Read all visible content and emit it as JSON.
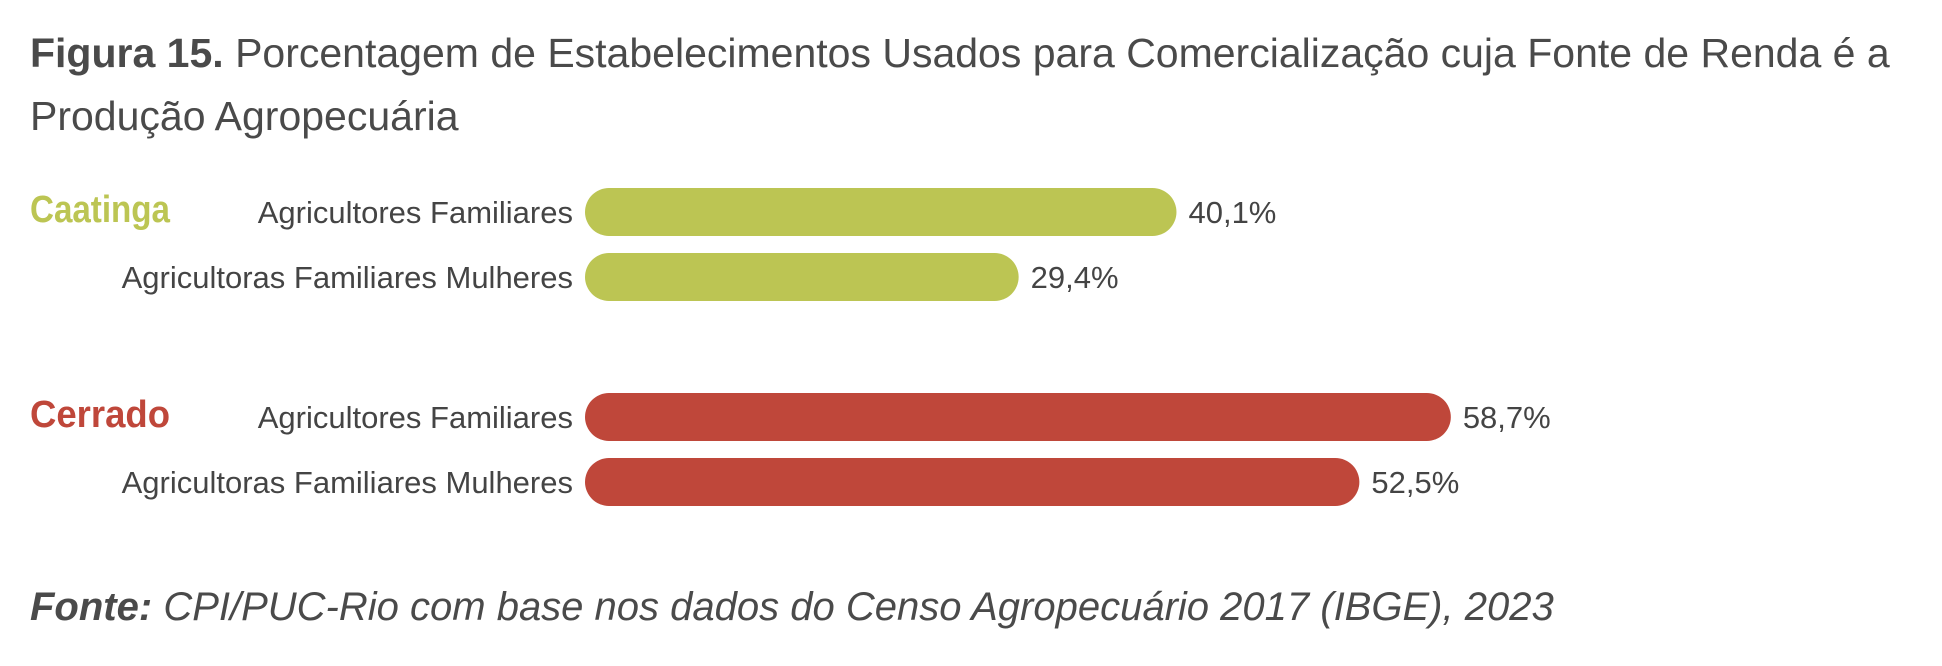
{
  "title": {
    "label": "Figura 15.",
    "text": "Porcentagem de Estabelecimentos Usados para Comercialização cuja Fonte de Renda é a Produção Agropecuária"
  },
  "source": {
    "label": "Fonte:",
    "text": "CPI/PUC-Rio com base nos dados do Censo Agropecuário 2017 (IBGE), 2023"
  },
  "chart_data": {
    "type": "bar",
    "orientation": "horizontal",
    "title": "Porcentagem de Estabelecimentos Usados para Comercialização cuja Fonte de Renda é a Produção Agropecuária",
    "xlim": [
      0,
      100
    ],
    "unit": "%",
    "grid": false,
    "groups": [
      {
        "name": "Caatinga",
        "color": "#bcc553",
        "bars": [
          {
            "category": "Agricultores Familiares",
            "value": 40.1,
            "label": "40,1%"
          },
          {
            "category": "Agricultoras Familiares Mulheres",
            "value": 29.4,
            "label": "29,4%"
          }
        ]
      },
      {
        "name": "Cerrado",
        "color": "#bf473a",
        "bars": [
          {
            "category": "Agricultores Familiares",
            "value": 58.7,
            "label": "58,7%"
          },
          {
            "category": "Agricultoras Familiares Mulheres",
            "value": 52.5,
            "label": "52,5%"
          }
        ]
      }
    ]
  }
}
